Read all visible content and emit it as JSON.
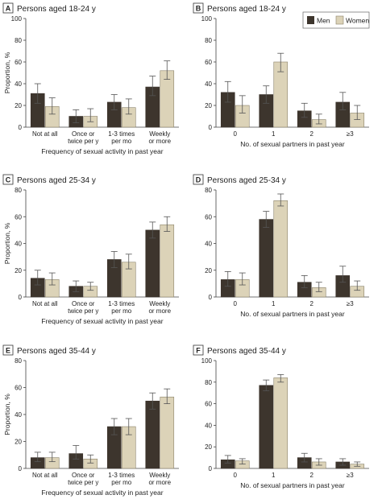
{
  "colors": {
    "men": "#3d352d",
    "women": "#dcd3b8",
    "axis": "#444444",
    "errorbar": "#555555"
  },
  "legend": {
    "men": "Men",
    "women": "Women"
  },
  "chart_data": [
    {
      "panel": "A",
      "title": "Persons aged 18-24 y",
      "type": "bar",
      "xlabel": "Frequency of sexual activity in past year",
      "ylabel": "Proportion, %",
      "ylim": [
        0,
        100
      ],
      "yticks": [
        0,
        20,
        40,
        60,
        80,
        100
      ],
      "categories": [
        [
          "Not at all"
        ],
        [
          "Once or",
          "twice per y"
        ],
        [
          "1-3 times",
          "per mo"
        ],
        [
          "Weekly",
          "or more"
        ]
      ],
      "series": [
        {
          "name": "Men",
          "values": [
            31,
            10,
            23,
            37
          ],
          "err_low": [
            22,
            4,
            16,
            29
          ],
          "err_high": [
            40,
            16,
            30,
            47
          ]
        },
        {
          "name": "Women",
          "values": [
            19,
            10,
            18,
            52
          ],
          "err_low": [
            12,
            5,
            12,
            44
          ],
          "err_high": [
            27,
            17,
            26,
            61
          ]
        }
      ]
    },
    {
      "panel": "B",
      "title": "Persons aged 18-24 y",
      "type": "bar",
      "xlabel": "No. of sexual partners in past year",
      "ylabel": "",
      "ylim": [
        0,
        100
      ],
      "yticks": [
        0,
        20,
        40,
        60,
        80,
        100
      ],
      "categories": [
        [
          "0"
        ],
        [
          "1"
        ],
        [
          "2"
        ],
        [
          "≥3"
        ]
      ],
      "legend_position": "top-right",
      "series": [
        {
          "name": "Men",
          "values": [
            32,
            30,
            15,
            23
          ],
          "err_low": [
            23,
            22,
            9,
            16
          ],
          "err_high": [
            42,
            38,
            22,
            32
          ]
        },
        {
          "name": "Women",
          "values": [
            20,
            60,
            7,
            13
          ],
          "err_low": [
            13,
            51,
            3,
            7
          ],
          "err_high": [
            29,
            68,
            12,
            20
          ]
        }
      ]
    },
    {
      "panel": "C",
      "title": "Persons aged 25-34 y",
      "type": "bar",
      "xlabel": "Frequency of sexual activity in past year",
      "ylabel": "Proportion, %",
      "ylim": [
        0,
        80
      ],
      "yticks": [
        0,
        20,
        40,
        60,
        80
      ],
      "categories": [
        [
          "Not at all"
        ],
        [
          "Once or",
          "twice per y"
        ],
        [
          "1-3 times",
          "per mo"
        ],
        [
          "Weekly",
          "or more"
        ]
      ],
      "series": [
        {
          "name": "Men",
          "values": [
            14,
            8,
            28,
            50
          ],
          "err_low": [
            9,
            4,
            22,
            44
          ],
          "err_high": [
            20,
            12,
            34,
            56
          ]
        },
        {
          "name": "Women",
          "values": [
            13,
            8,
            26,
            54
          ],
          "err_low": [
            9,
            5,
            21,
            49
          ],
          "err_high": [
            18,
            11,
            32,
            60
          ]
        }
      ]
    },
    {
      "panel": "D",
      "title": "Persons aged 25-34 y",
      "type": "bar",
      "xlabel": "No. of sexual partners in past year",
      "ylabel": "",
      "ylim": [
        0,
        80
      ],
      "yticks": [
        0,
        20,
        40,
        60,
        80
      ],
      "categories": [
        [
          "0"
        ],
        [
          "1"
        ],
        [
          "2"
        ],
        [
          "≥3"
        ]
      ],
      "series": [
        {
          "name": "Men",
          "values": [
            13,
            58,
            11,
            16
          ],
          "err_low": [
            8,
            52,
            7,
            11
          ],
          "err_high": [
            19,
            64,
            16,
            23
          ]
        },
        {
          "name": "Women",
          "values": [
            13,
            72,
            7,
            8
          ],
          "err_low": [
            9,
            68,
            4,
            5
          ],
          "err_high": [
            18,
            77,
            11,
            12
          ]
        }
      ]
    },
    {
      "panel": "E",
      "title": "Persons aged 35-44 y",
      "type": "bar",
      "xlabel": "Frequency of sexual activity in past year",
      "ylabel": "Proportion, %",
      "ylim": [
        0,
        80
      ],
      "yticks": [
        0,
        20,
        40,
        60,
        80
      ],
      "categories": [
        [
          "Not at all"
        ],
        [
          "Once or",
          "twice per y"
        ],
        [
          "1-3 times",
          "per mo"
        ],
        [
          "Weekly",
          "or more"
        ]
      ],
      "series": [
        {
          "name": "Men",
          "values": [
            8,
            11,
            31,
            50
          ],
          "err_low": [
            5,
            7,
            25,
            44
          ],
          "err_high": [
            12,
            17,
            37,
            56
          ]
        },
        {
          "name": "Women",
          "values": [
            8,
            7,
            31,
            53
          ],
          "err_low": [
            5,
            4,
            25,
            48
          ],
          "err_high": [
            12,
            10,
            37,
            59
          ]
        }
      ]
    },
    {
      "panel": "F",
      "title": "Persons aged 35-44 y",
      "type": "bar",
      "xlabel": "No. of sexual partners in past year",
      "ylabel": "",
      "ylim": [
        0,
        100
      ],
      "yticks": [
        0,
        20,
        40,
        60,
        80,
        100
      ],
      "categories": [
        [
          "0"
        ],
        [
          "1"
        ],
        [
          "2"
        ],
        [
          "≥3"
        ]
      ],
      "series": [
        {
          "name": "Men",
          "values": [
            8,
            77,
            10,
            6
          ],
          "err_low": [
            5,
            72,
            6,
            3
          ],
          "err_high": [
            12,
            82,
            14,
            9
          ]
        },
        {
          "name": "Women",
          "values": [
            7,
            84,
            6,
            4
          ],
          "err_low": [
            4,
            80,
            3,
            2
          ],
          "err_high": [
            9,
            87,
            9,
            6
          ]
        }
      ]
    }
  ]
}
